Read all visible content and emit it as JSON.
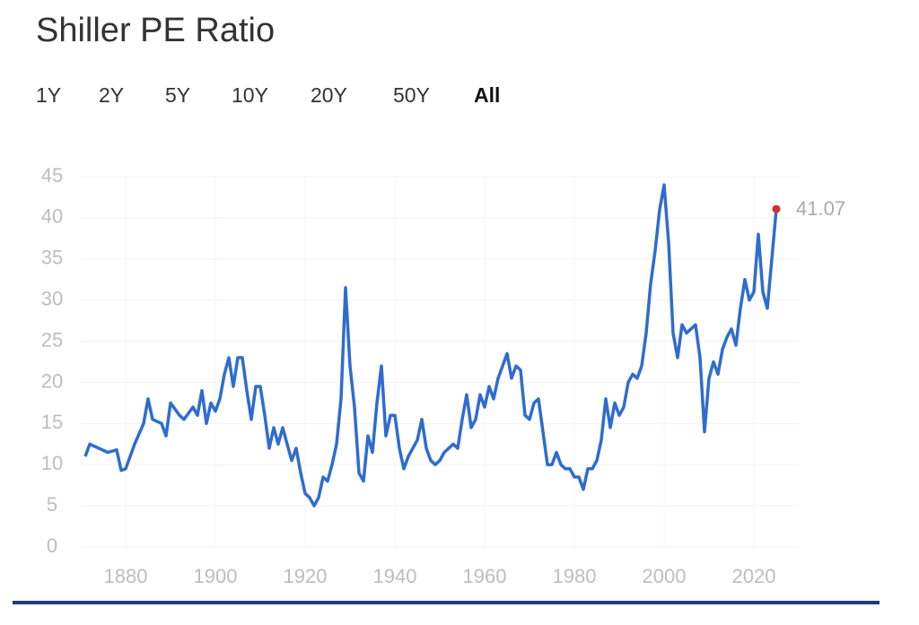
{
  "range_options": [
    "1Y",
    "2Y",
    "5Y",
    "10Y",
    "20Y",
    "50Y",
    "All"
  ],
  "selected_range_index": 6,
  "chart_data": {
    "type": "line",
    "title": "Shiller PE Ratio",
    "x": [
      1871,
      1872,
      1874,
      1876,
      1878,
      1879,
      1880,
      1882,
      1884,
      1885,
      1886,
      1888,
      1889,
      1890,
      1892,
      1893,
      1895,
      1896,
      1897,
      1898,
      1899,
      1900,
      1901,
      1902,
      1903,
      1904,
      1905,
      1906,
      1907,
      1908,
      1909,
      1910,
      1911,
      1912,
      1913,
      1914,
      1915,
      1916,
      1917,
      1918,
      1919,
      1920,
      1921,
      1922,
      1923,
      1924,
      1925,
      1926,
      1927,
      1928,
      1929,
      1930,
      1931,
      1932,
      1933,
      1934,
      1935,
      1936,
      1937,
      1938,
      1939,
      1940,
      1941,
      1942,
      1943,
      1944,
      1945,
      1946,
      1947,
      1948,
      1949,
      1950,
      1951,
      1952,
      1953,
      1954,
      1955,
      1956,
      1957,
      1958,
      1959,
      1960,
      1961,
      1962,
      1963,
      1964,
      1965,
      1966,
      1967,
      1968,
      1969,
      1970,
      1971,
      1972,
      1973,
      1974,
      1975,
      1976,
      1977,
      1978,
      1979,
      1980,
      1981,
      1982,
      1983,
      1984,
      1985,
      1986,
      1987,
      1988,
      1989,
      1990,
      1991,
      1992,
      1993,
      1994,
      1995,
      1996,
      1997,
      1998,
      1999,
      2000,
      2001,
      2002,
      2003,
      2004,
      2005,
      2006,
      2007,
      2008,
      2009,
      2010,
      2011,
      2012,
      2013,
      2014,
      2015,
      2016,
      2017,
      2018,
      2019,
      2020,
      2021,
      2022,
      2023,
      2024,
      2025
    ],
    "values": [
      11,
      12.5,
      12,
      11.5,
      11.8,
      9.3,
      9.5,
      12.5,
      15,
      18,
      15.5,
      15,
      13.5,
      17.5,
      16,
      15.5,
      17,
      16,
      19,
      15,
      17.5,
      16.5,
      18,
      21,
      23,
      19.5,
      23,
      23,
      19,
      15.5,
      19.5,
      19.5,
      16,
      12,
      14.5,
      12.5,
      14.5,
      12.5,
      10.5,
      12,
      9,
      6.5,
      6,
      5,
      6,
      8.5,
      8,
      10,
      12.5,
      18,
      31.5,
      22,
      17,
      9,
      8,
      13.5,
      11.5,
      17.5,
      22,
      13.5,
      16,
      16,
      12,
      9.5,
      11,
      12,
      13,
      15.5,
      12,
      10.5,
      10,
      10.5,
      11.5,
      12,
      12.5,
      12,
      15.5,
      18.5,
      14.5,
      15.5,
      18.5,
      17,
      19.5,
      18,
      20.5,
      22,
      23.5,
      20.5,
      22,
      21.5,
      16,
      15.5,
      17.5,
      18,
      14,
      10,
      10,
      11.5,
      10,
      9.5,
      9.5,
      8.5,
      8.5,
      7,
      9.5,
      9.5,
      10.5,
      13,
      18,
      14.5,
      17.5,
      16,
      17,
      20,
      21,
      20.5,
      22,
      26,
      32,
      36,
      41,
      44,
      37,
      26,
      23,
      27,
      26,
      26.5,
      27,
      23,
      14,
      20.5,
      22.5,
      21,
      24,
      25.5,
      26.5,
      24.5,
      29,
      32.5,
      30,
      31,
      38,
      31,
      29,
      35,
      41.07
    ],
    "color": "#2f6cd0",
    "last_point_color": "#d32f2f",
    "xlim": [
      1870,
      2030
    ],
    "ylim": [
      0,
      45
    ],
    "xticks": [
      1880,
      1900,
      1920,
      1940,
      1960,
      1980,
      2000,
      2020
    ],
    "yticks": [
      0,
      5,
      10,
      15,
      20,
      25,
      30,
      35,
      40,
      45
    ],
    "grid": true
  }
}
